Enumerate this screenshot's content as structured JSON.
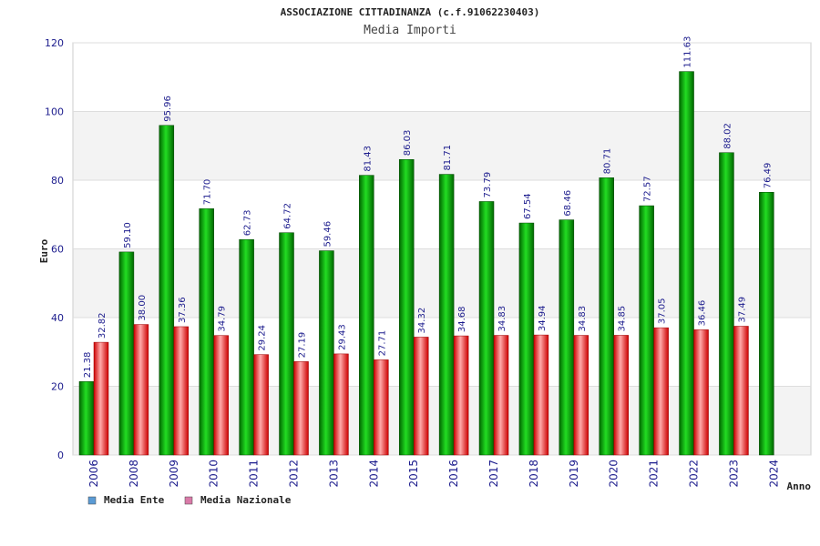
{
  "chart_data": {
    "type": "bar",
    "title": "ASSOCIAZIONE CITTADINANZA (c.f.91062230403)",
    "subtitle": "Media Importi",
    "ylabel": "Euro",
    "xlabel": "Anno",
    "ylim": [
      0,
      120
    ],
    "yticks": [
      0,
      20,
      40,
      60,
      80,
      100,
      120
    ],
    "grid": true,
    "legend_position": "bottom-left",
    "categories": [
      "2006",
      "2008",
      "2009",
      "2010",
      "2011",
      "2012",
      "2013",
      "2014",
      "2015",
      "2016",
      "2017",
      "2018",
      "2019",
      "2020",
      "2021",
      "2022",
      "2023",
      "2024"
    ],
    "series": [
      {
        "name": "Media Ente",
        "color": "#00b000",
        "legend_color": "#5b9bd5",
        "values": [
          21.38,
          59.1,
          95.96,
          71.7,
          62.73,
          64.72,
          59.46,
          81.43,
          86.03,
          81.71,
          73.79,
          67.54,
          68.46,
          80.71,
          72.57,
          111.63,
          88.02,
          76.49
        ],
        "labels": [
          "21.38",
          "59.10",
          "95.96",
          "71.70",
          "62.73",
          "64.72",
          "59.46",
          "81.43",
          "86.03",
          "81.71",
          "73.79",
          "67.54",
          "68.46",
          "80.71",
          "72.57",
          "111.63",
          "88.02",
          "76.49"
        ]
      },
      {
        "name": "Media Nazionale",
        "color": "#e02020",
        "legend_color": "#d97aa8",
        "values": [
          32.82,
          38.0,
          37.36,
          34.79,
          29.24,
          27.19,
          29.43,
          27.71,
          34.32,
          34.68,
          34.83,
          34.94,
          34.83,
          34.85,
          37.05,
          36.46,
          37.49,
          null
        ],
        "labels": [
          "32.82",
          "38.00",
          "37.36",
          "34.79",
          "29.24",
          "27.19",
          "29.43",
          "27.71",
          "34.32",
          "34.68",
          "34.83",
          "34.94",
          "34.83",
          "34.85",
          "37.05",
          "36.46",
          "37.49",
          ""
        ]
      }
    ]
  }
}
